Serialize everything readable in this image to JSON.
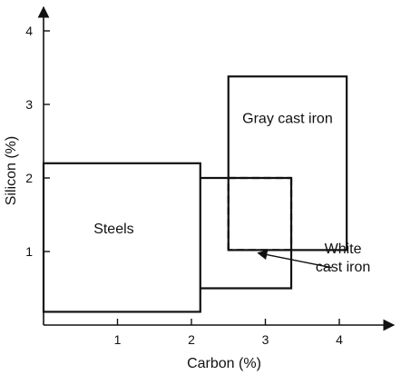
{
  "chart_data": {
    "type": "diagram-regions",
    "xlabel": "Carbon (%)",
    "ylabel": "Silicon (%)",
    "xlim": [
      0,
      4.8
    ],
    "ylim": [
      0,
      4.4
    ],
    "x_ticks": [
      1,
      2,
      3,
      4
    ],
    "y_ticks": [
      1,
      2,
      3,
      4
    ],
    "x_tick_labels": [
      "1",
      "2",
      "3",
      "4"
    ],
    "y_tick_labels": [
      "1",
      "2",
      "3",
      "4"
    ],
    "regions": [
      {
        "label": "Steels",
        "x0": 0.0,
        "x1": 2.12,
        "y0": 0.18,
        "y1": 2.2,
        "label_at": [
          0.95,
          1.25
        ]
      },
      {
        "label": "Gray cast iron",
        "x0": 2.5,
        "x1": 4.1,
        "y0": 1.02,
        "y1": 3.38,
        "label_at": [
          3.3,
          2.75
        ]
      },
      {
        "label": "White cast iron",
        "polygon": [
          [
            2.12,
            2.0
          ],
          [
            3.35,
            2.0
          ],
          [
            3.35,
            0.5
          ],
          [
            2.12,
            0.5
          ]
        ],
        "label_lines": [
          "White",
          "cast iron"
        ],
        "label_at": [
          4.05,
          0.85
        ]
      }
    ],
    "dashed_segments": [
      [
        [
          2.5,
          2.0
        ],
        [
          3.35,
          2.0
        ]
      ],
      [
        [
          3.35,
          2.0
        ],
        [
          3.35,
          1.02
        ]
      ],
      [
        [
          3.35,
          1.02
        ],
        [
          2.5,
          1.02
        ]
      ],
      [
        [
          2.5,
          1.02
        ],
        [
          2.5,
          2.0
        ]
      ]
    ],
    "arrow": {
      "from": [
        3.9,
        0.78
      ],
      "to": [
        2.9,
        0.98
      ]
    }
  }
}
